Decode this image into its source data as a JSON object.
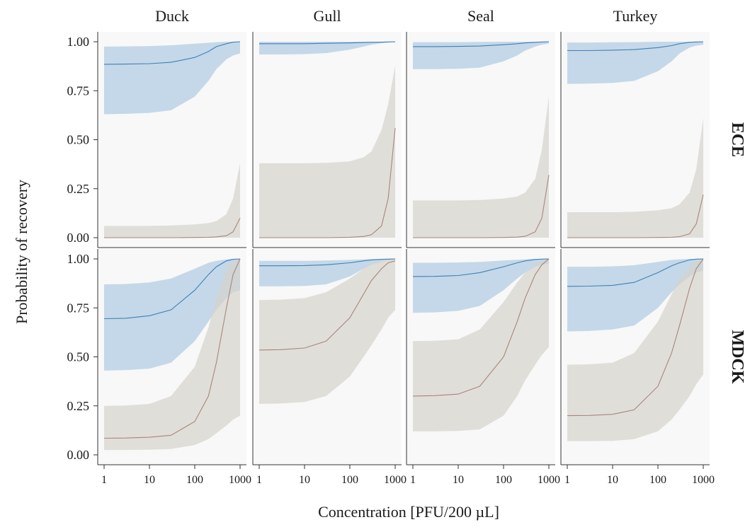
{
  "chart_data": {
    "type": "line",
    "xlabel": "Concentration [PFU/200 µL]",
    "ylabel": "Probability of recovery",
    "x_scale": "log",
    "xlim": [
      1,
      1000
    ],
    "ylim": [
      0,
      1
    ],
    "x_ticks": [
      "1",
      "10",
      "100",
      "1000"
    ],
    "y_ticks": [
      "0.00",
      "0.25",
      "0.50",
      "0.75",
      "1.00"
    ],
    "columns": [
      "Duck",
      "Gull",
      "Seal",
      "Turkey"
    ],
    "rows": [
      "ECE",
      "MDCK"
    ],
    "x": [
      1,
      3,
      10,
      30,
      100,
      200,
      300,
      500,
      700,
      1000
    ],
    "series_colors": {
      "blue": "#3f7fb4",
      "blue_band": "#b3cde4",
      "brown": "#a8867a",
      "brown_band": "#d6d3cc"
    },
    "grid": false,
    "legend": "none",
    "panels": [
      {
        "row": "ECE",
        "column": "Duck",
        "series": [
          {
            "color": "blue",
            "mean": [
              0.885,
              0.886,
              0.888,
              0.895,
              0.92,
              0.95,
              0.975,
              0.99,
              0.998,
              1.0
            ],
            "lower": [
              0.63,
              0.632,
              0.637,
              0.65,
              0.72,
              0.8,
              0.86,
              0.91,
              0.93,
              0.94
            ],
            "upper": [
              0.975,
              0.976,
              0.978,
              0.982,
              0.99,
              0.995,
              0.998,
              1.0,
              1.0,
              1.0
            ]
          },
          {
            "color": "brown",
            "mean": [
              0.0,
              0.0,
              0.0,
              0.0,
              0.001,
              0.002,
              0.004,
              0.01,
              0.03,
              0.1
            ],
            "lower": [
              0,
              0,
              0,
              0,
              0,
              0,
              0,
              0,
              0,
              0
            ],
            "upper": [
              0.06,
              0.06,
              0.06,
              0.062,
              0.068,
              0.075,
              0.085,
              0.12,
              0.2,
              0.38
            ]
          }
        ]
      },
      {
        "row": "ECE",
        "column": "Gull",
        "series": [
          {
            "color": "blue",
            "mean": [
              0.99,
              0.99,
              0.99,
              0.992,
              0.994,
              0.996,
              0.997,
              0.998,
              0.999,
              1.0
            ],
            "lower": [
              0.935,
              0.935,
              0.937,
              0.942,
              0.96,
              0.975,
              0.985,
              0.992,
              0.996,
              0.998
            ],
            "upper": [
              1,
              1,
              1,
              1,
              1,
              1,
              1,
              1,
              1,
              1
            ]
          },
          {
            "color": "brown",
            "mean": [
              0.0,
              0.0,
              0.0,
              0.0,
              0.002,
              0.006,
              0.015,
              0.06,
              0.2,
              0.56
            ],
            "lower": [
              0,
              0,
              0,
              0,
              0,
              0,
              0,
              0,
              0,
              0
            ],
            "upper": [
              0.38,
              0.38,
              0.38,
              0.382,
              0.39,
              0.41,
              0.44,
              0.55,
              0.68,
              0.88
            ]
          }
        ]
      },
      {
        "row": "ECE",
        "column": "Seal",
        "series": [
          {
            "color": "blue",
            "mean": [
              0.975,
              0.975,
              0.976,
              0.978,
              0.985,
              0.99,
              0.994,
              0.997,
              0.999,
              1.0
            ],
            "lower": [
              0.86,
              0.86,
              0.862,
              0.868,
              0.9,
              0.93,
              0.955,
              0.975,
              0.985,
              0.99
            ],
            "upper": [
              0.998,
              0.998,
              0.998,
              0.999,
              1,
              1,
              1,
              1,
              1,
              1
            ]
          },
          {
            "color": "brown",
            "mean": [
              0.0,
              0.0,
              0.0,
              0.0,
              0.001,
              0.003,
              0.007,
              0.03,
              0.1,
              0.32
            ],
            "lower": [
              0,
              0,
              0,
              0,
              0,
              0,
              0,
              0,
              0,
              0
            ],
            "upper": [
              0.19,
              0.19,
              0.19,
              0.192,
              0.2,
              0.21,
              0.23,
              0.3,
              0.45,
              0.72
            ]
          }
        ]
      },
      {
        "row": "ECE",
        "column": "Turkey",
        "series": [
          {
            "color": "blue",
            "mean": [
              0.955,
              0.955,
              0.957,
              0.96,
              0.97,
              0.98,
              0.99,
              0.997,
              0.999,
              1.0
            ],
            "lower": [
              0.785,
              0.786,
              0.79,
              0.8,
              0.85,
              0.9,
              0.94,
              0.97,
              0.98,
              0.985
            ],
            "upper": [
              0.996,
              0.996,
              0.997,
              0.998,
              1,
              1,
              1,
              1,
              1,
              1
            ]
          },
          {
            "color": "brown",
            "mean": [
              0.0,
              0.0,
              0.0,
              0.0,
              0.001,
              0.002,
              0.005,
              0.02,
              0.07,
              0.22
            ],
            "lower": [
              0,
              0,
              0,
              0,
              0,
              0,
              0,
              0,
              0,
              0
            ],
            "upper": [
              0.13,
              0.13,
              0.13,
              0.132,
              0.14,
              0.15,
              0.17,
              0.23,
              0.35,
              0.61
            ]
          }
        ]
      },
      {
        "row": "MDCK",
        "column": "Duck",
        "series": [
          {
            "color": "blue",
            "mean": [
              0.695,
              0.697,
              0.71,
              0.74,
              0.84,
              0.92,
              0.96,
              0.99,
              0.998,
              1.0
            ],
            "lower": [
              0.43,
              0.432,
              0.44,
              0.47,
              0.58,
              0.68,
              0.74,
              0.8,
              0.83,
              0.84
            ],
            "upper": [
              0.87,
              0.872,
              0.88,
              0.9,
              0.95,
              0.98,
              0.99,
              0.998,
              1,
              1
            ]
          },
          {
            "color": "brown",
            "mean": [
              0.085,
              0.086,
              0.09,
              0.1,
              0.17,
              0.3,
              0.47,
              0.75,
              0.92,
              1.0
            ],
            "lower": [
              0.025,
              0.025,
              0.026,
              0.03,
              0.05,
              0.08,
              0.11,
              0.15,
              0.18,
              0.2
            ],
            "upper": [
              0.25,
              0.252,
              0.26,
              0.3,
              0.45,
              0.65,
              0.8,
              0.95,
              0.99,
              1.0
            ]
          }
        ]
      },
      {
        "row": "MDCK",
        "column": "Gull",
        "series": [
          {
            "color": "blue",
            "mean": [
              0.965,
              0.965,
              0.966,
              0.97,
              0.98,
              0.99,
              0.995,
              0.998,
              0.999,
              1.0
            ],
            "lower": [
              0.86,
              0.86,
              0.862,
              0.87,
              0.91,
              0.95,
              0.97,
              0.985,
              0.992,
              0.995
            ],
            "upper": [
              0.99,
              0.99,
              0.99,
              0.992,
              0.995,
              0.998,
              0.999,
              1,
              1,
              1
            ]
          },
          {
            "color": "brown",
            "mean": [
              0.535,
              0.537,
              0.545,
              0.58,
              0.7,
              0.82,
              0.89,
              0.95,
              0.98,
              0.99
            ],
            "lower": [
              0.26,
              0.262,
              0.27,
              0.3,
              0.4,
              0.5,
              0.56,
              0.64,
              0.7,
              0.74
            ],
            "upper": [
              0.79,
              0.792,
              0.8,
              0.83,
              0.9,
              0.95,
              0.975,
              0.99,
              0.998,
              1.0
            ]
          }
        ]
      },
      {
        "row": "MDCK",
        "column": "Seal",
        "series": [
          {
            "color": "blue",
            "mean": [
              0.91,
              0.911,
              0.915,
              0.93,
              0.96,
              0.98,
              0.99,
              0.997,
              0.999,
              1.0
            ],
            "lower": [
              0.725,
              0.727,
              0.735,
              0.76,
              0.84,
              0.9,
              0.93,
              0.96,
              0.97,
              0.975
            ],
            "upper": [
              0.98,
              0.98,
              0.982,
              0.985,
              0.992,
              0.996,
              0.998,
              1,
              1,
              1
            ]
          },
          {
            "color": "brown",
            "mean": [
              0.3,
              0.302,
              0.31,
              0.35,
              0.5,
              0.68,
              0.8,
              0.92,
              0.97,
              1.0
            ],
            "lower": [
              0.12,
              0.12,
              0.122,
              0.13,
              0.2,
              0.3,
              0.38,
              0.46,
              0.51,
              0.55
            ],
            "upper": [
              0.58,
              0.582,
              0.59,
              0.64,
              0.78,
              0.88,
              0.93,
              0.97,
              0.99,
              1.0
            ]
          }
        ]
      },
      {
        "row": "MDCK",
        "column": "Turkey",
        "series": [
          {
            "color": "blue",
            "mean": [
              0.86,
              0.861,
              0.865,
              0.88,
              0.93,
              0.965,
              0.98,
              0.995,
              0.999,
              1.0
            ],
            "lower": [
              0.63,
              0.632,
              0.64,
              0.66,
              0.75,
              0.83,
              0.87,
              0.91,
              0.93,
              0.94
            ],
            "upper": [
              0.96,
              0.96,
              0.962,
              0.968,
              0.985,
              0.995,
              0.998,
              1,
              1,
              1
            ]
          },
          {
            "color": "brown",
            "mean": [
              0.2,
              0.201,
              0.207,
              0.23,
              0.35,
              0.52,
              0.66,
              0.85,
              0.95,
              1.0
            ],
            "lower": [
              0.07,
              0.07,
              0.071,
              0.08,
              0.12,
              0.18,
              0.23,
              0.3,
              0.36,
              0.41
            ],
            "upper": [
              0.46,
              0.462,
              0.47,
              0.52,
              0.68,
              0.82,
              0.9,
              0.96,
              0.99,
              1.0
            ]
          }
        ]
      }
    ]
  }
}
